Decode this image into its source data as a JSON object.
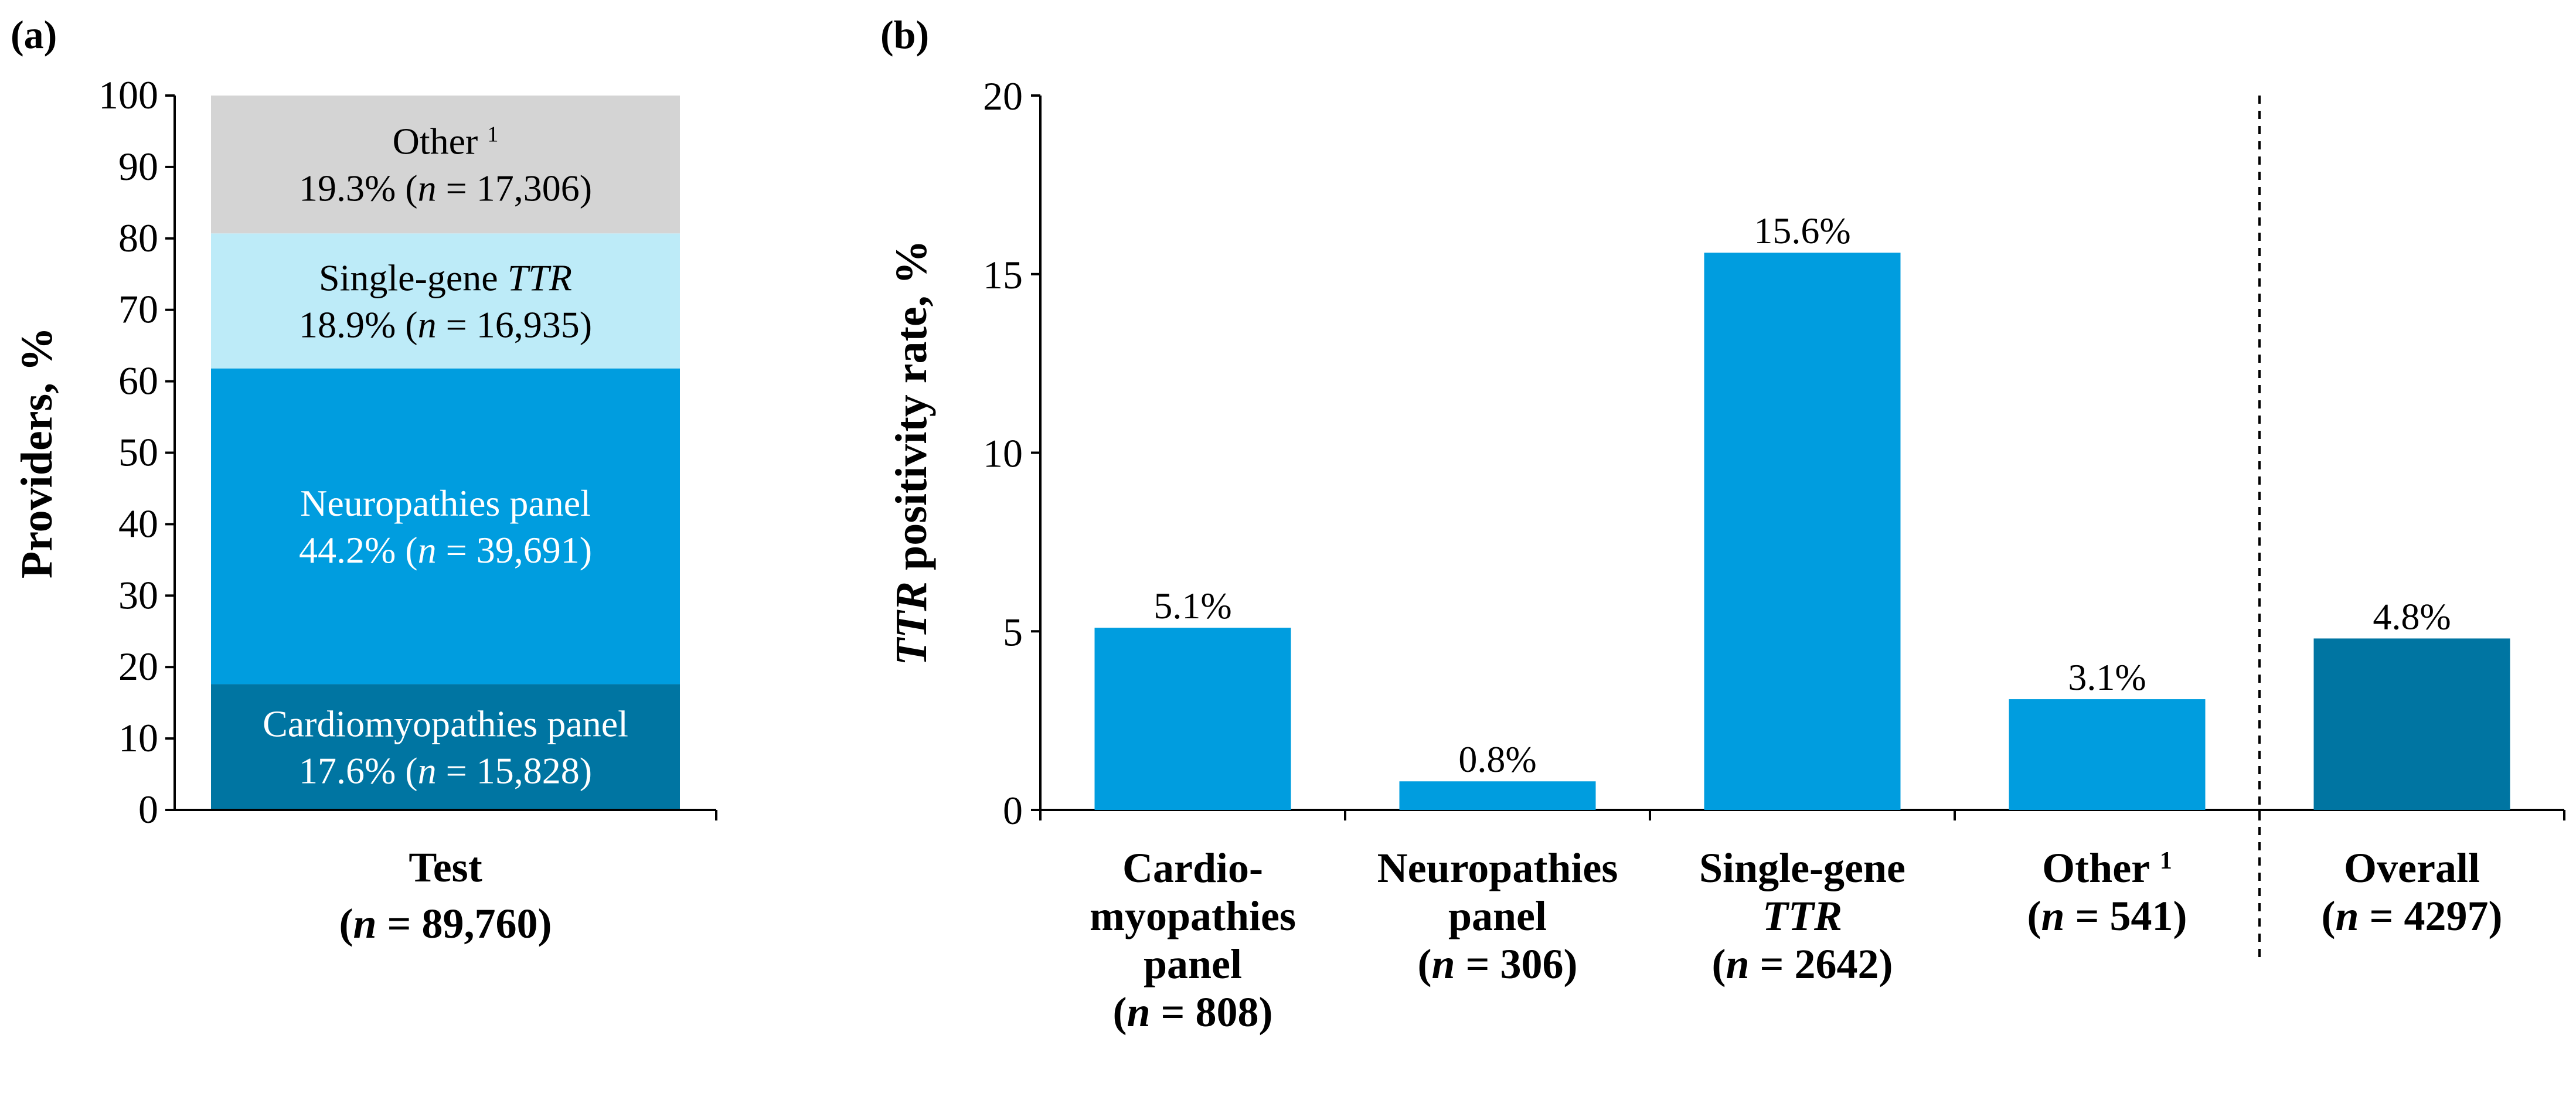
{
  "panels": {
    "a": {
      "label": "(a)"
    },
    "b": {
      "label": "(b)"
    }
  },
  "colors": {
    "other": "#D4D4D4",
    "single_gene": "#BDEBF8",
    "neuropathies": "#009DDF",
    "cardiomyopathies": "#0075A2",
    "bar": "#009DDF",
    "overall": "#0075A2",
    "white_text": "#FFFFFF",
    "black_text": "#000000"
  },
  "chart_data": [
    {
      "type": "bar",
      "stacked": true,
      "title": "",
      "ylabel": "Providers, %",
      "ylim": [
        0,
        100
      ],
      "yticks": [
        0,
        10,
        20,
        30,
        40,
        50,
        60,
        70,
        80,
        90,
        100
      ],
      "category": {
        "line1": "Test",
        "n_prefix": "(",
        "n_symbol": "n",
        "n_suffix": " = 89,760)"
      },
      "segments": [
        {
          "key": "cardio",
          "name": "Cardiomyopathies panel",
          "name_italic": "",
          "value": 17.6,
          "pct": "17.6% (",
          "n_symbol": "n",
          "n_rest": " = 15,828)",
          "text_color": "white"
        },
        {
          "key": "neuro",
          "name": "Neuropathies panel",
          "name_italic": "",
          "value": 44.2,
          "pct": "44.2% (",
          "n_symbol": "n",
          "n_rest": " = 39,691)",
          "text_color": "white"
        },
        {
          "key": "single",
          "name": "Single-gene ",
          "name_italic": "TTR",
          "value": 18.9,
          "pct": "18.9% (",
          "n_symbol": "n",
          "n_rest": " = 16,935)",
          "text_color": "black"
        },
        {
          "key": "other",
          "name": "Other ",
          "name_italic": "",
          "superscript": "1",
          "value": 19.3,
          "pct": "19.3% (",
          "n_symbol": "n",
          "n_rest": " = 17,306)",
          "text_color": "black"
        }
      ]
    },
    {
      "type": "bar",
      "title": "",
      "ylabel_italic": "TTR",
      "ylabel_rest": " positivity rate, %",
      "ylim": [
        0,
        20
      ],
      "yticks": [
        0,
        5,
        10,
        15,
        20
      ],
      "divider_after_index": 3,
      "bars": [
        {
          "key": "cardio",
          "value": 5.1,
          "label": "5.1%",
          "cat_lines": [
            "Cardio-",
            "myopathies",
            "panel"
          ],
          "cat_italic_line": "",
          "n_text": " = 808)",
          "color": "bar"
        },
        {
          "key": "neuro",
          "value": 0.8,
          "label": "0.8%",
          "cat_lines": [
            "Neuropathies",
            "panel"
          ],
          "cat_italic_line": "",
          "n_text": " = 306)",
          "color": "bar"
        },
        {
          "key": "single",
          "value": 15.6,
          "label": "15.6%",
          "cat_lines": [
            "Single-gene"
          ],
          "cat_italic_line": "TTR",
          "n_text": " = 2642)",
          "color": "bar"
        },
        {
          "key": "other",
          "value": 3.1,
          "label": "3.1%",
          "cat_lines": [
            "Other "
          ],
          "superscript": "1",
          "cat_italic_line": "",
          "n_text": " = 541)",
          "color": "bar"
        },
        {
          "key": "overall",
          "value": 4.8,
          "label": "4.8%",
          "cat_lines": [
            "Overall"
          ],
          "cat_italic_line": "",
          "n_text": " = 4297)",
          "color": "overall"
        }
      ]
    }
  ]
}
